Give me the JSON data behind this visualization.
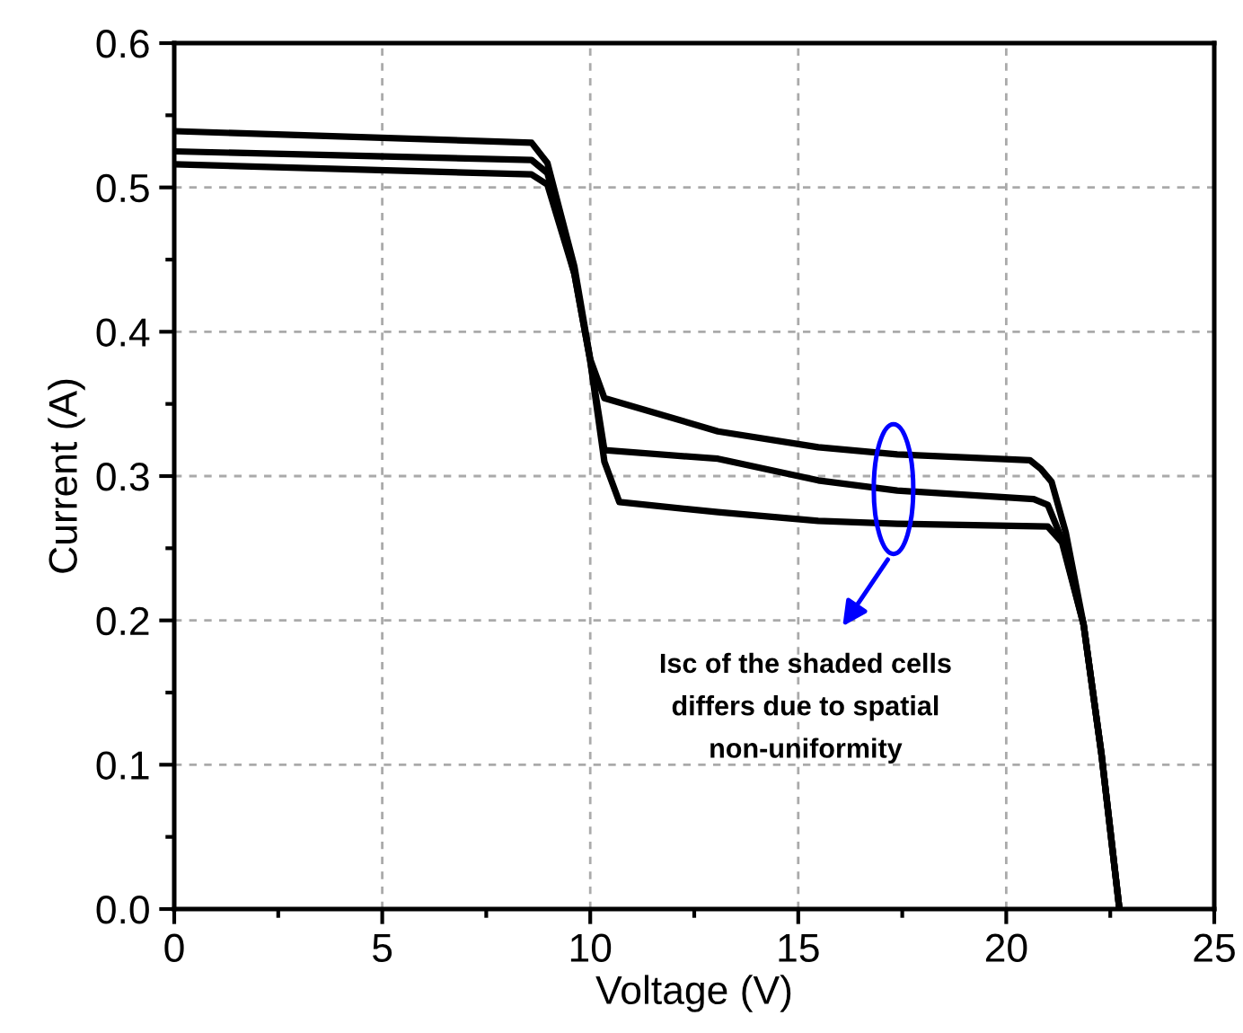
{
  "chart_data": {
    "type": "line",
    "xlabel": "Voltage (V)",
    "ylabel": "Current (A)",
    "xlim": [
      0,
      25
    ],
    "ylim": [
      0,
      0.6
    ],
    "xticks": [
      0,
      5,
      10,
      15,
      20,
      25
    ],
    "yticks": [
      {
        "value": 0,
        "label": "0.0"
      },
      0.1,
      0.2,
      0.3,
      0.4,
      0.5,
      0.6
    ],
    "grid": true,
    "marker": "none",
    "line_style": "solid",
    "series": [
      {
        "color": "#000000",
        "x": [
          0,
          8.59,
          8.97,
          9.62,
          10.0,
          10.34,
          13.07,
          15.48,
          17.38,
          20.57,
          20.83,
          21.09,
          21.43,
          21.86,
          22.29,
          22.72
        ],
        "values": [
          0.539,
          0.531,
          0.517,
          0.445,
          0.381,
          0.354,
          0.331,
          0.32,
          0.315,
          0.311,
          0.305,
          0.296,
          0.261,
          0.197,
          0.107,
          0.0
        ]
      },
      {
        "color": "#000000",
        "x": [
          0,
          8.59,
          8.97,
          9.62,
          10.0,
          10.34,
          13.07,
          15.48,
          17.38,
          20.66,
          21.0,
          21.34,
          21.86,
          22.29,
          22.72
        ],
        "values": [
          0.525,
          0.519,
          0.51,
          0.44,
          0.38,
          0.318,
          0.312,
          0.297,
          0.29,
          0.284,
          0.28,
          0.256,
          0.197,
          0.107,
          0.0
        ]
      },
      {
        "color": "#000000",
        "x": [
          0,
          8.59,
          8.97,
          9.62,
          10.0,
          10.34,
          10.7,
          13.07,
          15.48,
          17.38,
          21.0,
          21.34,
          21.86,
          22.29,
          22.72
        ],
        "values": [
          0.516,
          0.509,
          0.502,
          0.44,
          0.38,
          0.31,
          0.282,
          0.275,
          0.269,
          0.267,
          0.265,
          0.254,
          0.197,
          0.107,
          0.0
        ]
      }
    ],
    "annotations": [
      "Isc of the shaded cells\ndiffers due to spatial\nnon-uniformity"
    ]
  }
}
